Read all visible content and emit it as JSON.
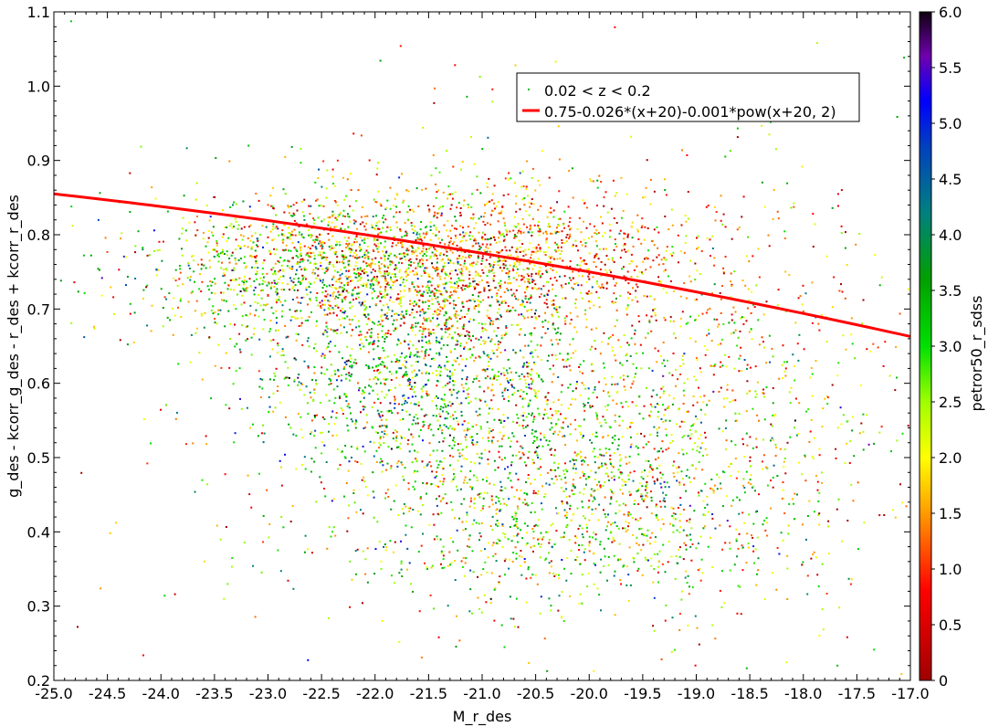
{
  "chart_data": {
    "type": "scatter",
    "xlabel": "M_r_des",
    "ylabel": "g_des - kcorr_g_des - r_des + kcorr_r_des",
    "xlim": [
      -25.0,
      -17.0
    ],
    "ylim": [
      0.2,
      1.1
    ],
    "x_ticks": [
      "-25.0",
      "-24.5",
      "-24.0",
      "-23.5",
      "-23.0",
      "-22.5",
      "-22.0",
      "-21.5",
      "-21.0",
      "-20.5",
      "-20.0",
      "-19.5",
      "-19.0",
      "-18.5",
      "-18.0",
      "-17.5",
      "-17.0"
    ],
    "y_ticks": [
      "0.2",
      "0.3",
      "0.4",
      "0.5",
      "0.6",
      "0.7",
      "0.8",
      "0.9",
      "1.0",
      "1.1"
    ],
    "grid": false,
    "legend_position": "top-right",
    "series": [
      {
        "name": "0.02 < z < 0.2",
        "kind": "points",
        "color_by": "petror50_r_sdss",
        "clusters": [
          {
            "x_center": -22.4,
            "x_spread": 0.9,
            "y_center": 0.76,
            "y_spread": 0.05,
            "c_center": 2.4,
            "c_spread": 1.2,
            "count": 1400
          },
          {
            "x_center": -20.8,
            "x_spread": 0.9,
            "y_center": 0.77,
            "y_spread": 0.05,
            "c_center": 1.3,
            "c_spread": 0.7,
            "count": 1200
          },
          {
            "x_center": -21.6,
            "x_spread": 0.8,
            "y_center": 0.62,
            "y_spread": 0.07,
            "c_center": 3.0,
            "c_spread": 1.3,
            "count": 1200
          },
          {
            "x_center": -20.3,
            "x_spread": 1.1,
            "y_center": 0.45,
            "y_spread": 0.08,
            "c_center": 2.5,
            "c_spread": 1.2,
            "count": 1400
          },
          {
            "x_center": -19.0,
            "x_spread": 1.0,
            "y_center": 0.58,
            "y_spread": 0.13,
            "c_center": 1.8,
            "c_spread": 1.0,
            "count": 700
          },
          {
            "x_center": -20.8,
            "x_spread": 2.2,
            "y_center": 0.6,
            "y_spread": 0.22,
            "c_center": 1.8,
            "c_spread": 1.5,
            "count": 500
          }
        ]
      },
      {
        "name": "0.75-0.026*(x+20)-0.001*pow(x+20, 2)",
        "kind": "function",
        "color": "#ff0000",
        "coefficients": {
          "a": 0.75,
          "b": -0.026,
          "c": -0.001,
          "x_offset": 20
        },
        "x": [
          -25.0,
          -17.0
        ],
        "y": [
          0.855,
          0.663
        ]
      }
    ],
    "colorbar": {
      "label": "petror50_r_sdss",
      "range": [
        0,
        6.0
      ],
      "ticks": [
        "0",
        "0.5",
        "1.0",
        "1.5",
        "2.0",
        "2.5",
        "3.0",
        "3.5",
        "4.0",
        "4.5",
        "5.0",
        "5.5",
        "6.0"
      ],
      "stops": [
        {
          "value": 0.0,
          "color": "#a00000"
        },
        {
          "value": 0.8,
          "color": "#ff0000"
        },
        {
          "value": 1.6,
          "color": "#ffb000"
        },
        {
          "value": 2.0,
          "color": "#ffff00"
        },
        {
          "value": 2.5,
          "color": "#a0ff00"
        },
        {
          "value": 3.0,
          "color": "#00e000"
        },
        {
          "value": 3.6,
          "color": "#00a000"
        },
        {
          "value": 4.2,
          "color": "#008080"
        },
        {
          "value": 4.8,
          "color": "#0040c0"
        },
        {
          "value": 5.2,
          "color": "#0000ff"
        },
        {
          "value": 5.6,
          "color": "#7000b0"
        },
        {
          "value": 6.0,
          "color": "#100010"
        }
      ]
    }
  }
}
